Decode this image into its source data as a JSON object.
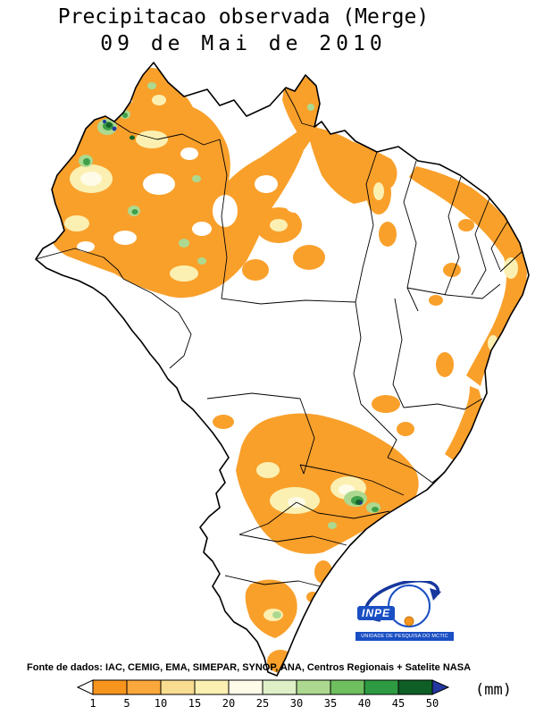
{
  "title": {
    "line1": "Precipitacao observada (Merge)",
    "line2": "09 de Mai de 2010"
  },
  "source_line": "Fonte de dados: IAC, CEMIG, EMA, SIMEPAR, SYNOP, ANA, Centros Regionais + Satelite NASA",
  "legend": {
    "unit": "(mm)",
    "tick_labels": [
      "1",
      "5",
      "10",
      "15",
      "20",
      "25",
      "30",
      "35",
      "40",
      "45",
      "50"
    ],
    "segments": [
      {
        "range": "1-5",
        "color": "#F7941E"
      },
      {
        "range": "5-10",
        "color": "#FAA73B"
      },
      {
        "range": "10-15",
        "color": "#F8DC8F"
      },
      {
        "range": "15-20",
        "color": "#FBF0B2"
      },
      {
        "range": "20-25",
        "color": "#FEFCE8"
      },
      {
        "range": "25-30",
        "color": "#DFF0C8"
      },
      {
        "range": "30-35",
        "color": "#ACD98F"
      },
      {
        "range": "35-40",
        "color": "#6FBF5F"
      },
      {
        "range": "40-45",
        "color": "#2E9B43"
      },
      {
        "range": "45-50",
        "color": "#0E5F26"
      }
    ],
    "left_arrow_color": "#FFFFFF",
    "right_arrow_color": "#2438A0"
  },
  "logo": {
    "name": "INPE",
    "caption": "UNIDADE DE PESQUISA DO MCTIC"
  },
  "palette": {
    "orange": "#F9A02B",
    "paleYellow": "#FBF0B2",
    "cream": "#FEFCE8",
    "lightGreen": "#ACD98F",
    "green": "#3FA04A",
    "darkGreen": "#14622A",
    "navy": "#2438A0"
  }
}
